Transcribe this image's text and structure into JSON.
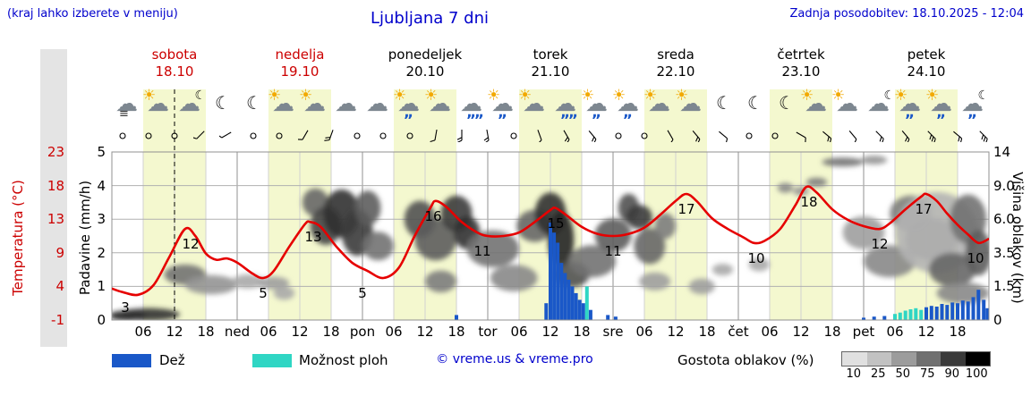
{
  "header": {
    "hint": "(kraj lahko izberete v meniju)",
    "title": "Ljubljana 7 dni",
    "updated": "Zadnja posodobitev: 18.10.2025 - 12:04"
  },
  "colors": {
    "rain": "#1a58c8",
    "shower": "#2fd6c4",
    "temperature": "#e60000",
    "daylight_band": "#f4f8cf",
    "accent_blue": "#0000cc",
    "accent_red": "#cc0000"
  },
  "days": [
    {
      "name": "sobota",
      "date": "18.10",
      "accent": "red"
    },
    {
      "name": "nedelja",
      "date": "19.10",
      "accent": "red"
    },
    {
      "name": "ponedeljek",
      "date": "20.10",
      "accent": "black"
    },
    {
      "name": "torek",
      "date": "21.10",
      "accent": "black"
    },
    {
      "name": "sreda",
      "date": "22.10",
      "accent": "black"
    },
    {
      "name": "četrtek",
      "date": "23.10",
      "accent": "black"
    },
    {
      "name": "petek",
      "date": "24.10",
      "accent": "black"
    }
  ],
  "axis_left_temp": {
    "label": "Temperatura (°C)",
    "ticks": [
      "23",
      "18",
      "13",
      "9",
      "4",
      "-1"
    ]
  },
  "axis_left_precip": {
    "label": "Padavine (mm/h)",
    "ticks": [
      "5",
      "4",
      "3",
      "2",
      "1",
      "0"
    ]
  },
  "axis_right": {
    "label": "Višina oblakov (km)",
    "ticks": [
      "14",
      "9.0",
      "6.0",
      "3.5",
      "1.5",
      "0"
    ]
  },
  "x_ticks": [
    {
      "t": 6,
      "label": "06"
    },
    {
      "t": 12,
      "label": "12"
    },
    {
      "t": 18,
      "label": "18"
    },
    {
      "t": 24,
      "label": "ned"
    },
    {
      "t": 30,
      "label": "06"
    },
    {
      "t": 36,
      "label": "12"
    },
    {
      "t": 42,
      "label": "18"
    },
    {
      "t": 48,
      "label": "pon"
    },
    {
      "t": 54,
      "label": "06"
    },
    {
      "t": 60,
      "label": "12"
    },
    {
      "t": 66,
      "label": "18"
    },
    {
      "t": 72,
      "label": "tor"
    },
    {
      "t": 78,
      "label": "06"
    },
    {
      "t": 84,
      "label": "12"
    },
    {
      "t": 90,
      "label": "18"
    },
    {
      "t": 96,
      "label": "sre"
    },
    {
      "t": 102,
      "label": "06"
    },
    {
      "t": 108,
      "label": "12"
    },
    {
      "t": 114,
      "label": "18"
    },
    {
      "t": 120,
      "label": "čet"
    },
    {
      "t": 126,
      "label": "06"
    },
    {
      "t": 132,
      "label": "12"
    },
    {
      "t": 138,
      "label": "18"
    },
    {
      "t": 144,
      "label": "pet"
    },
    {
      "t": 150,
      "label": "06"
    },
    {
      "t": 156,
      "label": "12"
    },
    {
      "t": 162,
      "label": "18"
    }
  ],
  "legend": {
    "rain": "Dež",
    "showers": "Možnost ploh",
    "copyright": "© vreme.us & vreme.pro",
    "density": "Gostota oblakov (%)",
    "density_ticks": [
      "10",
      "25",
      "50",
      "75",
      "90",
      "100"
    ],
    "density_colors": [
      "#e0e0e0",
      "#c2c2c2",
      "#9c9c9c",
      "#707070",
      "#3a3a3a",
      "#000000"
    ]
  },
  "chart_data": {
    "type": "meteogram",
    "x_hours_range": [
      0,
      168
    ],
    "temp_axis_c": [
      -1,
      23
    ],
    "precip_axis_mm": [
      0,
      5
    ],
    "cloud_axis_km": [
      0,
      14
    ],
    "daylight": [
      6,
      18
    ],
    "now_line_t": 12,
    "temperature": {
      "points": [
        [
          0,
          3.5
        ],
        [
          2,
          3
        ],
        [
          5,
          2.6
        ],
        [
          8,
          4
        ],
        [
          11,
          8
        ],
        [
          14,
          12
        ],
        [
          16,
          11
        ],
        [
          18,
          8.5
        ],
        [
          20,
          7.6
        ],
        [
          22,
          7.8
        ],
        [
          24,
          7.2
        ],
        [
          27,
          5.6
        ],
        [
          29,
          5
        ],
        [
          31,
          6
        ],
        [
          34,
          9.5
        ],
        [
          37,
          12.7
        ],
        [
          38,
          13
        ],
        [
          40,
          12.3
        ],
        [
          43,
          9.5
        ],
        [
          46,
          7.2
        ],
        [
          49,
          6
        ],
        [
          52,
          5
        ],
        [
          55,
          6.5
        ],
        [
          58,
          11
        ],
        [
          61,
          15
        ],
        [
          62,
          16
        ],
        [
          64,
          15.2
        ],
        [
          67,
          13
        ],
        [
          70,
          11.5
        ],
        [
          72,
          11
        ],
        [
          75,
          11
        ],
        [
          78,
          11.5
        ],
        [
          81,
          13
        ],
        [
          84,
          14.7
        ],
        [
          85,
          15
        ],
        [
          87,
          14
        ],
        [
          90,
          12.3
        ],
        [
          93,
          11.3
        ],
        [
          96,
          11
        ],
        [
          99,
          11.3
        ],
        [
          102,
          12.2
        ],
        [
          105,
          14
        ],
        [
          108,
          16
        ],
        [
          110,
          17
        ],
        [
          112,
          16
        ],
        [
          115,
          13.5
        ],
        [
          118,
          12
        ],
        [
          121,
          10.8
        ],
        [
          123,
          10
        ],
        [
          125,
          10.3
        ],
        [
          128,
          12
        ],
        [
          131,
          15.5
        ],
        [
          133,
          18
        ],
        [
          135,
          17.2
        ],
        [
          138,
          14.8
        ],
        [
          141,
          13.3
        ],
        [
          144,
          12.4
        ],
        [
          147,
          12
        ],
        [
          149,
          12.8
        ],
        [
          152,
          14.8
        ],
        [
          155,
          16.6
        ],
        [
          156,
          17
        ],
        [
          158,
          16
        ],
        [
          160,
          14.2
        ],
        [
          162,
          12.6
        ],
        [
          164,
          11.2
        ],
        [
          166,
          10
        ],
        [
          168,
          10.6
        ]
      ],
      "labels": [
        {
          "t": 2.5,
          "v": 3
        },
        {
          "t": 15,
          "v": 12
        },
        {
          "t": 29,
          "v": 5
        },
        {
          "t": 38.5,
          "v": 13
        },
        {
          "t": 48,
          "v": 5
        },
        {
          "t": 61.5,
          "v": 16
        },
        {
          "t": 71,
          "v": 11
        },
        {
          "t": 85,
          "v": 15
        },
        {
          "t": 96,
          "v": 11
        },
        {
          "t": 110,
          "v": 17
        },
        {
          "t": 123.5,
          "v": 10
        },
        {
          "t": 133.5,
          "v": 18
        },
        {
          "t": 147,
          "v": 12
        },
        {
          "t": 155.5,
          "v": 17
        },
        {
          "t": 165.5,
          "v": 10
        }
      ]
    },
    "precipitation": [
      [
        66,
        0.15,
        "rain"
      ],
      [
        83.2,
        0.5,
        "rain"
      ],
      [
        84,
        2.9,
        "rain"
      ],
      [
        84.7,
        2.6,
        "rain"
      ],
      [
        85.4,
        2.3,
        "rain"
      ],
      [
        86.1,
        1.7,
        "rain"
      ],
      [
        86.8,
        1.4,
        "rain"
      ],
      [
        87.5,
        1.2,
        "rain"
      ],
      [
        88.2,
        1.0,
        "rain"
      ],
      [
        88.9,
        0.8,
        "rain"
      ],
      [
        89.6,
        0.6,
        "rain"
      ],
      [
        90.3,
        0.5,
        "rain"
      ],
      [
        91,
        1.0,
        "shower"
      ],
      [
        91.7,
        0.3,
        "rain"
      ],
      [
        95,
        0.15,
        "rain"
      ],
      [
        96.5,
        0.1,
        "rain"
      ],
      [
        144,
        0.07,
        "rain"
      ],
      [
        146,
        0.1,
        "rain"
      ],
      [
        148,
        0.12,
        "rain"
      ],
      [
        150,
        0.18,
        "shower"
      ],
      [
        151,
        0.22,
        "shower"
      ],
      [
        152,
        0.28,
        "shower"
      ],
      [
        153,
        0.32,
        "shower"
      ],
      [
        154,
        0.35,
        "shower"
      ],
      [
        155,
        0.3,
        "shower"
      ],
      [
        156,
        0.38,
        "rain"
      ],
      [
        157,
        0.42,
        "rain"
      ],
      [
        158,
        0.4,
        "rain"
      ],
      [
        159,
        0.48,
        "rain"
      ],
      [
        160,
        0.45,
        "rain"
      ],
      [
        161,
        0.52,
        "rain"
      ],
      [
        162,
        0.5,
        "rain"
      ],
      [
        163,
        0.58,
        "rain"
      ],
      [
        164,
        0.55,
        "rain"
      ],
      [
        165,
        0.68,
        "rain"
      ],
      [
        166,
        0.9,
        "rain"
      ],
      [
        167,
        0.6,
        "rain"
      ],
      [
        167.7,
        0.35,
        "rain"
      ]
    ],
    "clouds": [
      [
        3,
        0.2,
        7,
        0.5,
        95
      ],
      [
        7,
        0.25,
        12,
        0.6,
        85
      ],
      [
        14,
        2.2,
        8,
        1.2,
        55
      ],
      [
        19,
        1.6,
        10,
        1.0,
        40
      ],
      [
        26,
        1.8,
        6,
        0.8,
        30
      ],
      [
        31,
        1.7,
        6,
        0.7,
        35
      ],
      [
        33,
        1.2,
        4,
        0.6,
        30
      ],
      [
        39,
        7.5,
        5,
        2.5,
        60
      ],
      [
        41,
        5.5,
        6,
        3,
        75
      ],
      [
        44,
        6.5,
        7,
        4,
        85
      ],
      [
        47,
        5,
        6,
        3.5,
        80
      ],
      [
        49,
        7,
        5,
        3,
        65
      ],
      [
        51,
        4,
        6,
        2,
        55
      ],
      [
        59,
        6,
        6,
        3,
        70
      ],
      [
        62,
        4.5,
        8,
        3,
        65
      ],
      [
        63,
        1.8,
        6,
        1.2,
        50
      ],
      [
        66,
        6.5,
        6,
        3,
        80
      ],
      [
        68,
        5,
        5,
        2.5,
        85
      ],
      [
        73,
        3.8,
        10,
        2.5,
        55
      ],
      [
        77,
        2,
        9,
        1.5,
        45
      ],
      [
        81,
        5.5,
        7,
        2.5,
        60
      ],
      [
        84,
        6.5,
        6,
        3.5,
        85
      ],
      [
        86,
        4.5,
        5,
        4,
        90
      ],
      [
        88,
        2.2,
        7,
        1.5,
        70
      ],
      [
        92,
        3,
        9,
        2,
        55
      ],
      [
        96,
        4.8,
        7,
        2.5,
        65
      ],
      [
        99,
        7,
        4,
        2.5,
        70
      ],
      [
        101,
        6.2,
        5,
        2,
        80
      ],
      [
        103,
        4,
        6,
        2.5,
        60
      ],
      [
        104,
        1.8,
        6,
        1,
        35
      ],
      [
        106,
        5.5,
        4,
        2,
        50
      ],
      [
        113,
        1.5,
        5,
        0.8,
        35
      ],
      [
        117,
        2.5,
        4,
        0.7,
        30
      ],
      [
        124,
        2.8,
        4,
        0.8,
        30
      ],
      [
        129,
        8.8,
        3,
        1,
        45
      ],
      [
        132,
        8.5,
        3,
        0.8,
        40
      ],
      [
        135,
        9.5,
        4,
        0.9,
        50
      ],
      [
        140,
        12.5,
        8,
        1,
        55
      ],
      [
        144,
        5,
        8,
        2.5,
        35
      ],
      [
        146,
        12.8,
        5,
        0.8,
        40
      ],
      [
        149,
        3,
        10,
        2,
        45
      ],
      [
        153,
        6.5,
        8,
        3,
        50
      ],
      [
        157,
        4.5,
        10,
        3,
        55
      ],
      [
        158,
        5,
        16,
        6,
        25
      ],
      [
        161,
        2.5,
        9,
        2,
        60
      ],
      [
        163,
        1.2,
        10,
        1,
        45
      ],
      [
        164,
        6,
        7,
        4,
        55
      ],
      [
        166,
        3.5,
        5,
        3,
        65
      ]
    ],
    "weather_icons": [
      "fog",
      "sun-cloud",
      "moon-cloud",
      "moon",
      "moon",
      "sun-cloud",
      "sun-cloud",
      "cloud",
      "cloud",
      "sun-shower",
      "sun-cloud",
      "rain",
      "sun-shower",
      "sun-cloud",
      "rain",
      "sun-shower",
      "sun-shower",
      "sun-cloud",
      "sun-cloud",
      "moon",
      "moon",
      "moon",
      "sun-cloud",
      "sun-cloud",
      "moon-cloud",
      "sun-shower",
      "sun-shower",
      "moon-shower"
    ],
    "wind": [
      "c",
      "c",
      "c",
      [
        225,
        1
      ],
      [
        240,
        1
      ],
      "c",
      "c",
      [
        210,
        1
      ],
      [
        200,
        2
      ],
      "c",
      "c",
      "c",
      [
        190,
        1
      ],
      [
        180,
        2
      ],
      [
        170,
        2
      ],
      "c",
      [
        160,
        1
      ],
      [
        150,
        2
      ],
      [
        140,
        2
      ],
      "c",
      "c",
      [
        150,
        1
      ],
      [
        140,
        2
      ],
      [
        130,
        1
      ],
      "c",
      "c",
      [
        120,
        1
      ],
      [
        130,
        2
      ],
      [
        140,
        1
      ],
      [
        135,
        2
      ],
      [
        140,
        2
      ],
      [
        135,
        3
      ],
      [
        130,
        2
      ],
      [
        135,
        3
      ]
    ]
  }
}
